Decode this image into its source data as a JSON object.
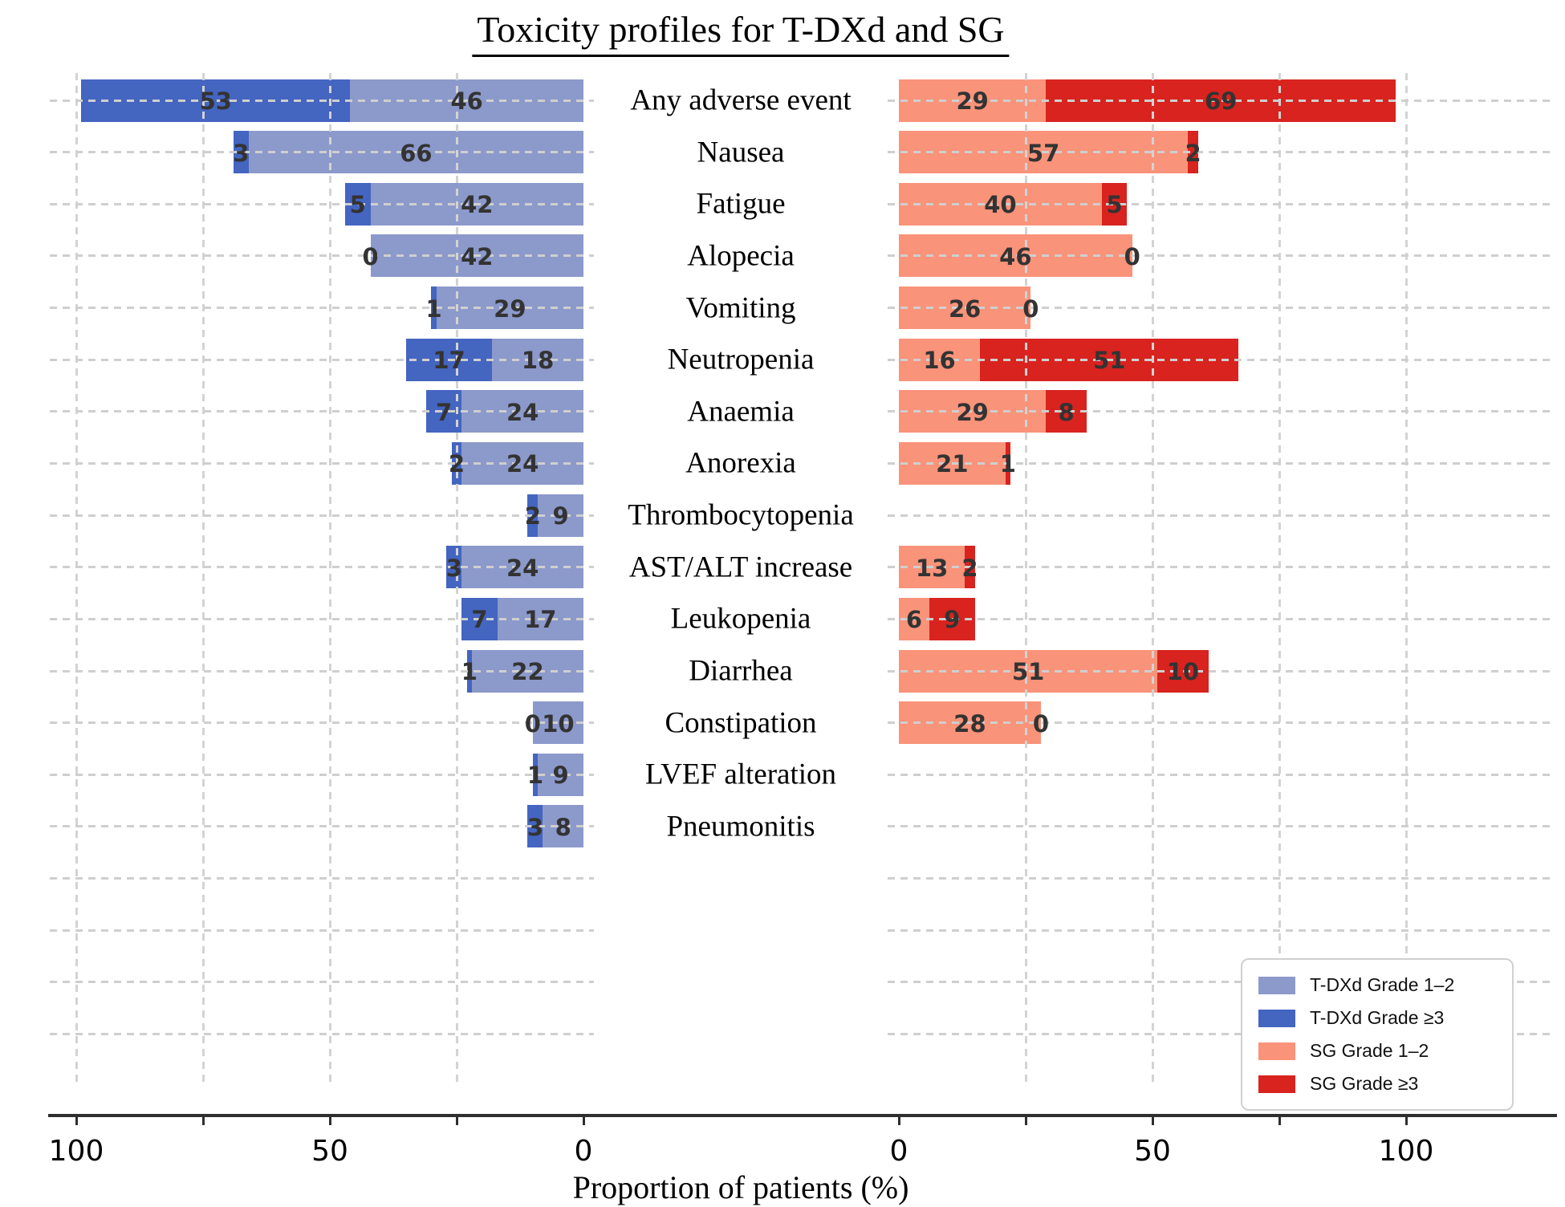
{
  "title": "Toxicity profiles for T-DXd and SG",
  "xlabel": "Proportion of patients (%)",
  "colors": {
    "tdxd_g12": "#8C99CB",
    "tdxd_g3": "#4465C0",
    "sg_g12": "#F9937A",
    "sg_g3": "#D8231F",
    "value_label": "#333333",
    "gridline": "#cfcfcf"
  },
  "legend": {
    "items": [
      {
        "label": "T-DXd Grade 1–2",
        "color_key": "tdxd_g12"
      },
      {
        "label": "T-DXd Grade ≥3",
        "color_key": "tdxd_g3"
      },
      {
        "label": "SG Grade 1–2",
        "color_key": "sg_g12"
      },
      {
        "label": "SG Grade ≥3",
        "color_key": "sg_g3"
      }
    ]
  },
  "axis": {
    "left_ticks": [
      100,
      50,
      0
    ],
    "right_ticks": [
      0,
      50,
      100
    ],
    "max": 100,
    "grid_step": 25,
    "grid": true,
    "legend_position": "lower right"
  },
  "chart_data": {
    "type": "bar",
    "orientation": "horizontal-diverging",
    "title": "Toxicity profiles for T-DXd and SG",
    "xlabel": "Proportion of patients (%)",
    "xlim_each_side": [
      0,
      100
    ],
    "categories": [
      "Any adverse event",
      "Nausea",
      "Fatigue",
      "Alopecia",
      "Vomiting",
      "Neutropenia",
      "Anaemia",
      "Anorexia",
      "Thrombocytopenia",
      "AST/ALT increase",
      "Leukopenia",
      "Diarrhea",
      "Constipation",
      "LVEF alteration",
      "Pneumonitis"
    ],
    "series": [
      {
        "name": "T-DXd Grade 1–2",
        "side": "left",
        "color_key": "tdxd_g12",
        "values": [
          46,
          66,
          42,
          42,
          29,
          18,
          24,
          24,
          9,
          24,
          17,
          22,
          10,
          9,
          8
        ]
      },
      {
        "name": "T-DXd Grade ≥3",
        "side": "left",
        "color_key": "tdxd_g3",
        "values": [
          53,
          3,
          5,
          0,
          1,
          17,
          7,
          2,
          2,
          3,
          7,
          1,
          0,
          1,
          3
        ]
      },
      {
        "name": "SG Grade 1–2",
        "side": "right",
        "color_key": "sg_g12",
        "values": [
          29,
          57,
          40,
          46,
          26,
          16,
          29,
          21,
          null,
          13,
          6,
          51,
          28,
          null,
          null
        ]
      },
      {
        "name": "SG Grade ≥3",
        "side": "right",
        "color_key": "sg_g3",
        "values": [
          69,
          2,
          5,
          0,
          0,
          51,
          8,
          1,
          null,
          2,
          9,
          10,
          0,
          null,
          null
        ]
      }
    ]
  }
}
